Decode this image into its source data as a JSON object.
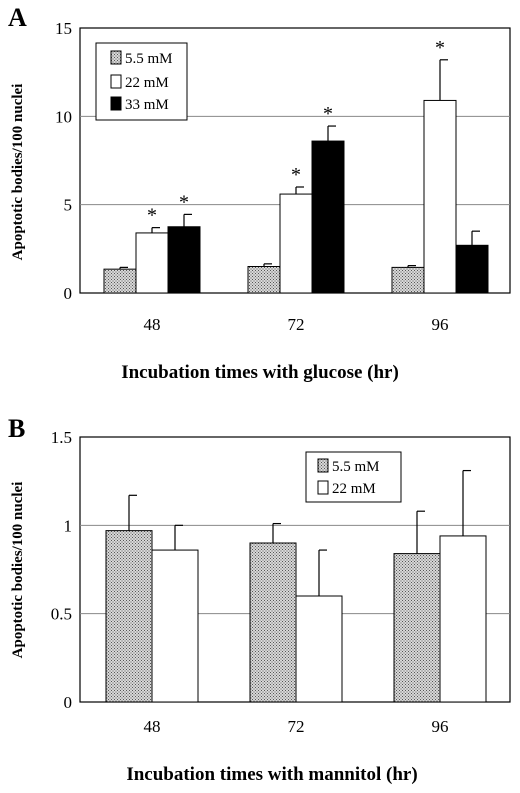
{
  "chart_data": [
    {
      "panel_label": "A",
      "type": "bar",
      "xlabel": "Incubation times with glucose (hr)",
      "ylabel": "Apoptotic bodies/100 nuclei",
      "ylim": [
        0,
        15
      ],
      "yticks": [
        "0",
        "5",
        "10",
        "15"
      ],
      "ytick_values": [
        0,
        5,
        10,
        15
      ],
      "categories": [
        "48",
        "72",
        "96"
      ],
      "grid": true,
      "legend_position": "top-left",
      "series": [
        {
          "name": "5.5 mM",
          "fill": "hatch",
          "values": [
            1.35,
            1.5,
            1.45
          ],
          "errors": [
            0.1,
            0.15,
            0.1
          ],
          "star": [
            false,
            false,
            false
          ]
        },
        {
          "name": "22 mM",
          "fill": "white",
          "values": [
            3.4,
            5.6,
            10.9
          ],
          "errors": [
            0.3,
            0.4,
            2.3
          ],
          "star": [
            true,
            true,
            true
          ]
        },
        {
          "name": "33 mM",
          "fill": "black",
          "values": [
            3.75,
            8.6,
            2.7
          ],
          "errors": [
            0.7,
            0.85,
            0.8
          ],
          "star": [
            true,
            true,
            false
          ]
        }
      ],
      "annotation_symbol": "*"
    },
    {
      "panel_label": "B",
      "type": "bar",
      "xlabel": "Incubation times with mannitol (hr)",
      "ylabel": "Apoptotic bodies/100 nuclei",
      "ylim": [
        0,
        1.5
      ],
      "yticks": [
        "0",
        "0.5",
        "1",
        "1.5"
      ],
      "ytick_values": [
        0,
        0.5,
        1,
        1.5
      ],
      "categories": [
        "48",
        "72",
        "96"
      ],
      "grid": true,
      "legend_position": "top-right",
      "series": [
        {
          "name": "5.5 mM",
          "fill": "hatch",
          "values": [
            0.97,
            0.9,
            0.84
          ],
          "errors": [
            0.2,
            0.11,
            0.24
          ],
          "star": [
            false,
            false,
            false
          ]
        },
        {
          "name": "22 mM",
          "fill": "white",
          "values": [
            0.86,
            0.6,
            0.94
          ],
          "errors": [
            0.14,
            0.26,
            0.37
          ],
          "star": [
            false,
            false,
            false
          ]
        }
      ]
    }
  ]
}
